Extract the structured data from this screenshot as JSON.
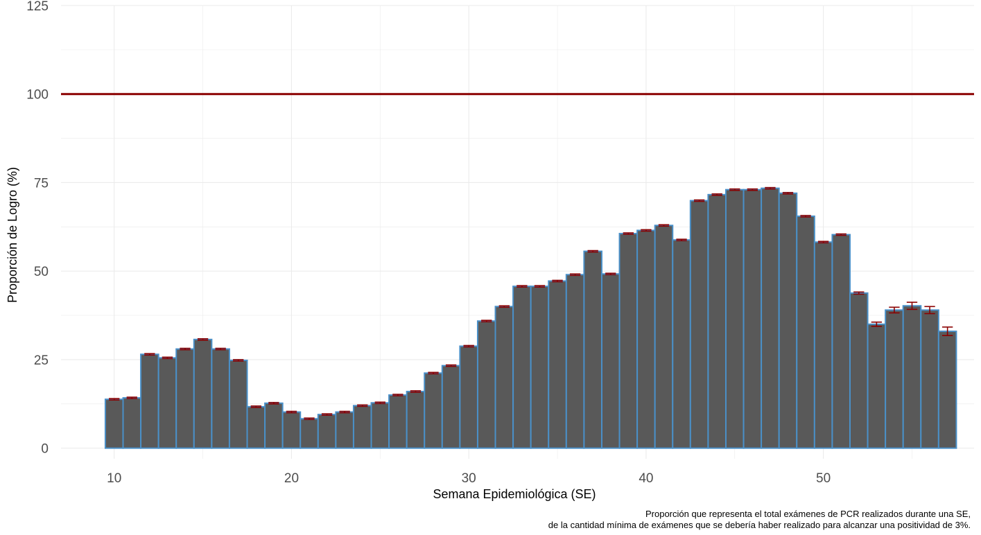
{
  "chart_data": {
    "type": "bar",
    "title": "",
    "xlabel": "Semana Epidemiológica (SE)",
    "ylabel": "Proporción de Logro (%)",
    "caption": [
      "Proporción que representa el total exámenes de PCR realizados durante una SE,",
      "de la cantidad mínima de exámenes que se debería haber realizado para alcanzar una positividad de 3%."
    ],
    "xlim": [
      7,
      58.5
    ],
    "ylim": [
      -3,
      125
    ],
    "x_ticks": [
      10,
      20,
      30,
      40,
      50
    ],
    "y_ticks": [
      0,
      25,
      50,
      75,
      100,
      125
    ],
    "reference_line": {
      "y": 100,
      "color": "#8b0000"
    },
    "grid": true,
    "colors": {
      "bar_fill": "#595959",
      "bar_outline": "#4a90c8",
      "error_bar": "#8b0000",
      "grid": "#ebebeb"
    },
    "x": [
      10,
      11,
      12,
      13,
      14,
      15,
      16,
      17,
      18,
      19,
      20,
      21,
      22,
      23,
      24,
      25,
      26,
      27,
      28,
      29,
      30,
      31,
      32,
      33,
      34,
      35,
      36,
      37,
      38,
      39,
      40,
      41,
      42,
      43,
      44,
      45,
      46,
      47,
      48,
      49,
      50,
      51,
      52,
      53,
      54,
      55,
      56,
      57
    ],
    "values": [
      13.8,
      14.2,
      26.5,
      25.5,
      28.0,
      30.7,
      28.0,
      24.8,
      11.7,
      12.7,
      10.2,
      8.3,
      9.5,
      10.2,
      12.0,
      12.8,
      15.0,
      16.0,
      21.2,
      23.3,
      28.8,
      35.9,
      40.0,
      45.7,
      45.7,
      47.2,
      49.0,
      55.6,
      49.2,
      60.6,
      61.5,
      62.9,
      58.8,
      69.9,
      71.6,
      73.0,
      73.0,
      73.4,
      72.0,
      65.5,
      58.2,
      60.3,
      43.8,
      35.0,
      39.0,
      40.2,
      39.0,
      33.0
    ],
    "error": [
      0.2,
      0.2,
      0.2,
      0.2,
      0.2,
      0.2,
      0.2,
      0.2,
      0.2,
      0.2,
      0.2,
      0.2,
      0.2,
      0.2,
      0.2,
      0.2,
      0.2,
      0.2,
      0.2,
      0.2,
      0.2,
      0.2,
      0.2,
      0.2,
      0.2,
      0.2,
      0.2,
      0.2,
      0.2,
      0.2,
      0.2,
      0.2,
      0.2,
      0.2,
      0.2,
      0.2,
      0.2,
      0.2,
      0.2,
      0.2,
      0.2,
      0.2,
      0.3,
      0.6,
      0.8,
      1.0,
      1.0,
      1.2
    ]
  }
}
